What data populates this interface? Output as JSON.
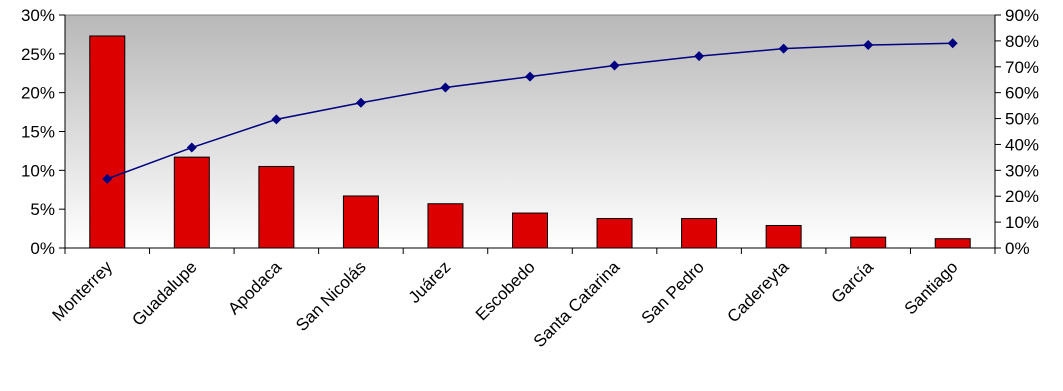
{
  "chart_data": {
    "type": "bar",
    "title": "",
    "xlabel": "",
    "ylabel": "",
    "grid": false,
    "ylim": [
      0,
      30
    ],
    "y2lim": [
      0,
      90
    ],
    "colors": {
      "bar": "#dd0000",
      "bar_edge": "#000000",
      "line": "#000080",
      "plot_bg_top": "#b8b8b8",
      "plot_bg_bottom": "#ffffff"
    },
    "categories": [
      "Monterrey",
      "Guadalupe",
      "Apodaca",
      "San Nicolás",
      "Juárez",
      "Escobedo",
      "Santa Catarina",
      "San Pedro",
      "Cadereyta",
      "García",
      "Santiago"
    ],
    "y_ticks": [
      "0%",
      "5%",
      "10%",
      "15%",
      "20%",
      "25%",
      "30%"
    ],
    "y2_ticks": [
      "0%",
      "10%",
      "20%",
      "30%",
      "40%",
      "50%",
      "60%",
      "70%",
      "80%",
      "90%"
    ],
    "series": [
      {
        "type": "bar",
        "axis": "left",
        "values": [
          27.3,
          11.7,
          10.5,
          6.7,
          5.7,
          4.5,
          3.8,
          3.8,
          2.9,
          1.4,
          1.2
        ]
      },
      {
        "type": "line",
        "axis": "right",
        "values": [
          26.7,
          38.8,
          49.7,
          56.1,
          62.0,
          66.2,
          70.5,
          74.1,
          77.0,
          78.4,
          79.1
        ]
      }
    ]
  }
}
